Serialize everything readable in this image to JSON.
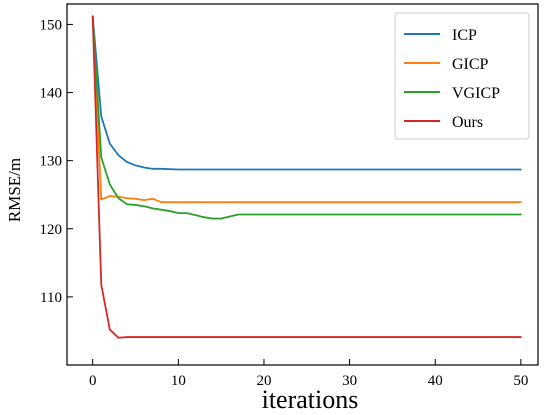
{
  "chart_data": {
    "type": "line",
    "xlabel": "iterations",
    "ylabel": "RMSE/m",
    "xlim": [
      -3,
      52
    ],
    "ylim": [
      100,
      153
    ],
    "xticks": [
      0,
      10,
      20,
      30,
      40,
      50
    ],
    "yticks": [
      110,
      120,
      130,
      140,
      150
    ],
    "tick_direction": "in",
    "grid": false,
    "legend_position": "top-right",
    "series": [
      {
        "name": "ICP",
        "color": "#1f77b4",
        "points": [
          [
            0,
            151.2
          ],
          [
            1,
            136.5
          ],
          [
            2,
            132.5
          ],
          [
            3,
            130.8
          ],
          [
            4,
            129.8
          ],
          [
            5,
            129.3
          ],
          [
            6,
            129.0
          ],
          [
            7,
            128.8
          ],
          [
            8,
            128.8
          ],
          [
            10,
            128.7
          ],
          [
            15,
            128.7
          ],
          [
            20,
            128.7
          ],
          [
            30,
            128.7
          ],
          [
            40,
            128.7
          ],
          [
            50,
            128.7
          ]
        ]
      },
      {
        "name": "GICP",
        "color": "#ff7f0e",
        "points": [
          [
            0,
            151.2
          ],
          [
            1,
            124.3
          ],
          [
            2,
            124.8
          ],
          [
            3,
            124.7
          ],
          [
            4,
            124.5
          ],
          [
            5,
            124.4
          ],
          [
            6,
            124.2
          ],
          [
            7,
            124.4
          ],
          [
            8,
            123.9
          ],
          [
            10,
            123.9
          ],
          [
            20,
            123.9
          ],
          [
            30,
            123.9
          ],
          [
            40,
            123.9
          ],
          [
            50,
            123.9
          ]
        ]
      },
      {
        "name": "VGICP",
        "color": "#2ca02c",
        "points": [
          [
            0,
            151.2
          ],
          [
            1,
            130.5
          ],
          [
            2,
            126.5
          ],
          [
            3,
            124.5
          ],
          [
            4,
            123.6
          ],
          [
            5,
            123.5
          ],
          [
            6,
            123.3
          ],
          [
            7,
            123.0
          ],
          [
            8,
            122.8
          ],
          [
            9,
            122.6
          ],
          [
            10,
            122.3
          ],
          [
            11,
            122.3
          ],
          [
            12,
            122.0
          ],
          [
            13,
            121.7
          ],
          [
            14,
            121.5
          ],
          [
            15,
            121.5
          ],
          [
            16,
            121.8
          ],
          [
            17,
            122.1
          ],
          [
            20,
            122.1
          ],
          [
            30,
            122.1
          ],
          [
            40,
            122.1
          ],
          [
            50,
            122.1
          ]
        ]
      },
      {
        "name": "Ours",
        "color": "#d62728",
        "points": [
          [
            0,
            151.2
          ],
          [
            1,
            111.8
          ],
          [
            2,
            105.2
          ],
          [
            3,
            104.0
          ],
          [
            4,
            104.1
          ],
          [
            5,
            104.1
          ],
          [
            6,
            104.1
          ],
          [
            10,
            104.1
          ],
          [
            20,
            104.1
          ],
          [
            30,
            104.1
          ],
          [
            40,
            104.1
          ],
          [
            50,
            104.1
          ]
        ]
      }
    ]
  }
}
